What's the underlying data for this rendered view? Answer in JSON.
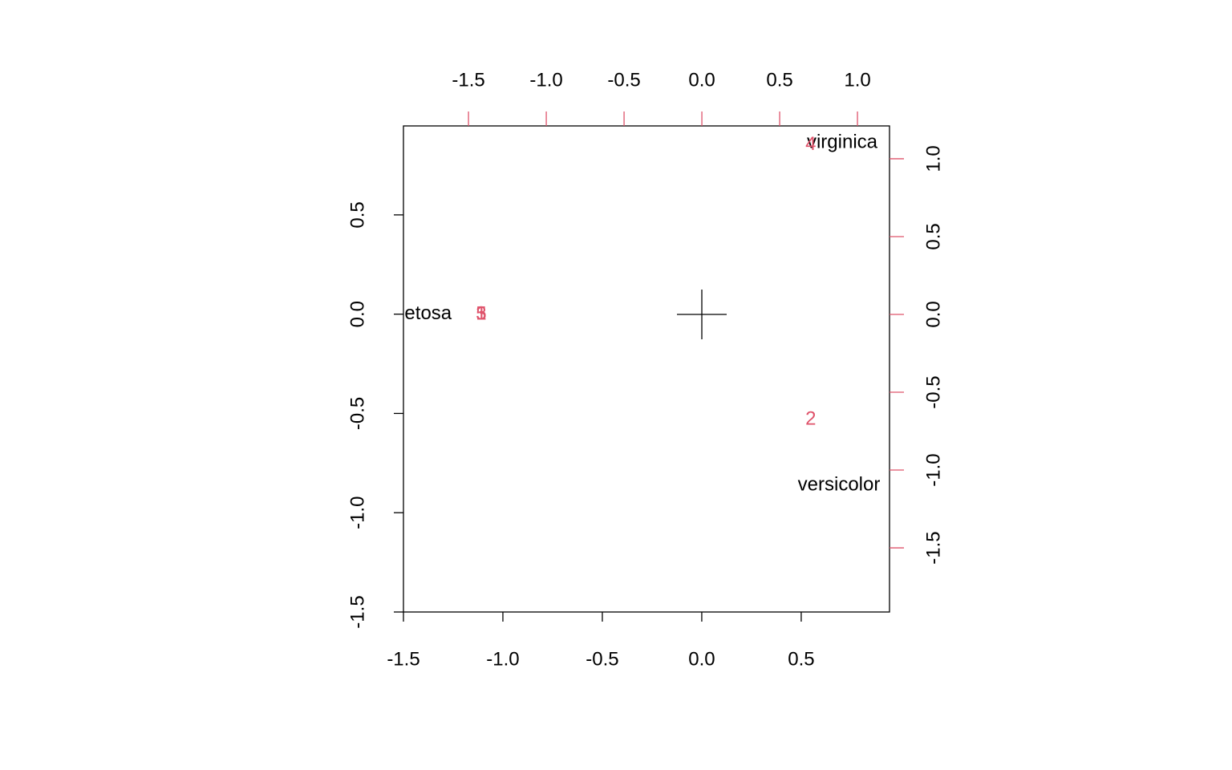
{
  "chart_data": {
    "type": "biplot",
    "xlim": [
      -1.5,
      0.944
    ],
    "ylim": [
      -1.5,
      0.948
    ],
    "xticks": [
      -1.5,
      {
        "value": -1,
        "label": "-1.0"
      },
      -0.5,
      {
        "value": 0,
        "label": "0.0"
      },
      0.5
    ],
    "yticks": [
      -1.5,
      {
        "value": -1,
        "label": "-1.0"
      },
      -0.5,
      {
        "value": 0,
        "label": "0.0"
      },
      0.5
    ],
    "x2lim": [
      -1.918,
      1.206
    ],
    "y2lim": [
      -1.912,
      1.211
    ],
    "x2ticks": [
      -1.5,
      {
        "value": -1,
        "label": "-1.0"
      },
      -0.5,
      {
        "value": 0,
        "label": "0.0"
      },
      0.5,
      {
        "value": 1,
        "label": "1.0"
      }
    ],
    "y2ticks": [
      -1.5,
      {
        "value": -1,
        "label": "-1.0"
      },
      -0.5,
      {
        "value": 0,
        "label": "0.0"
      },
      0.5,
      {
        "value": 1,
        "label": "1.0"
      }
    ],
    "axis_color2": "#df536b",
    "series": [
      {
        "color": "#000000",
        "labels": [
          "setosa",
          "versicolor",
          "virginica"
        ],
        "x": [
          -1.4,
          0.69,
          0.706
        ],
        "y": [
          0,
          -0.863,
          0.863
        ]
      },
      {
        "color": "#df536b",
        "axis": "y2",
        "labels": [
          "1",
          "2",
          "3",
          "4",
          "5"
        ],
        "x": [
          -1.418,
          0.7,
          -1.418,
          0.7,
          -1.418
        ],
        "y": [
          0,
          -0.675,
          0,
          1.088,
          0
        ]
      }
    ]
  }
}
